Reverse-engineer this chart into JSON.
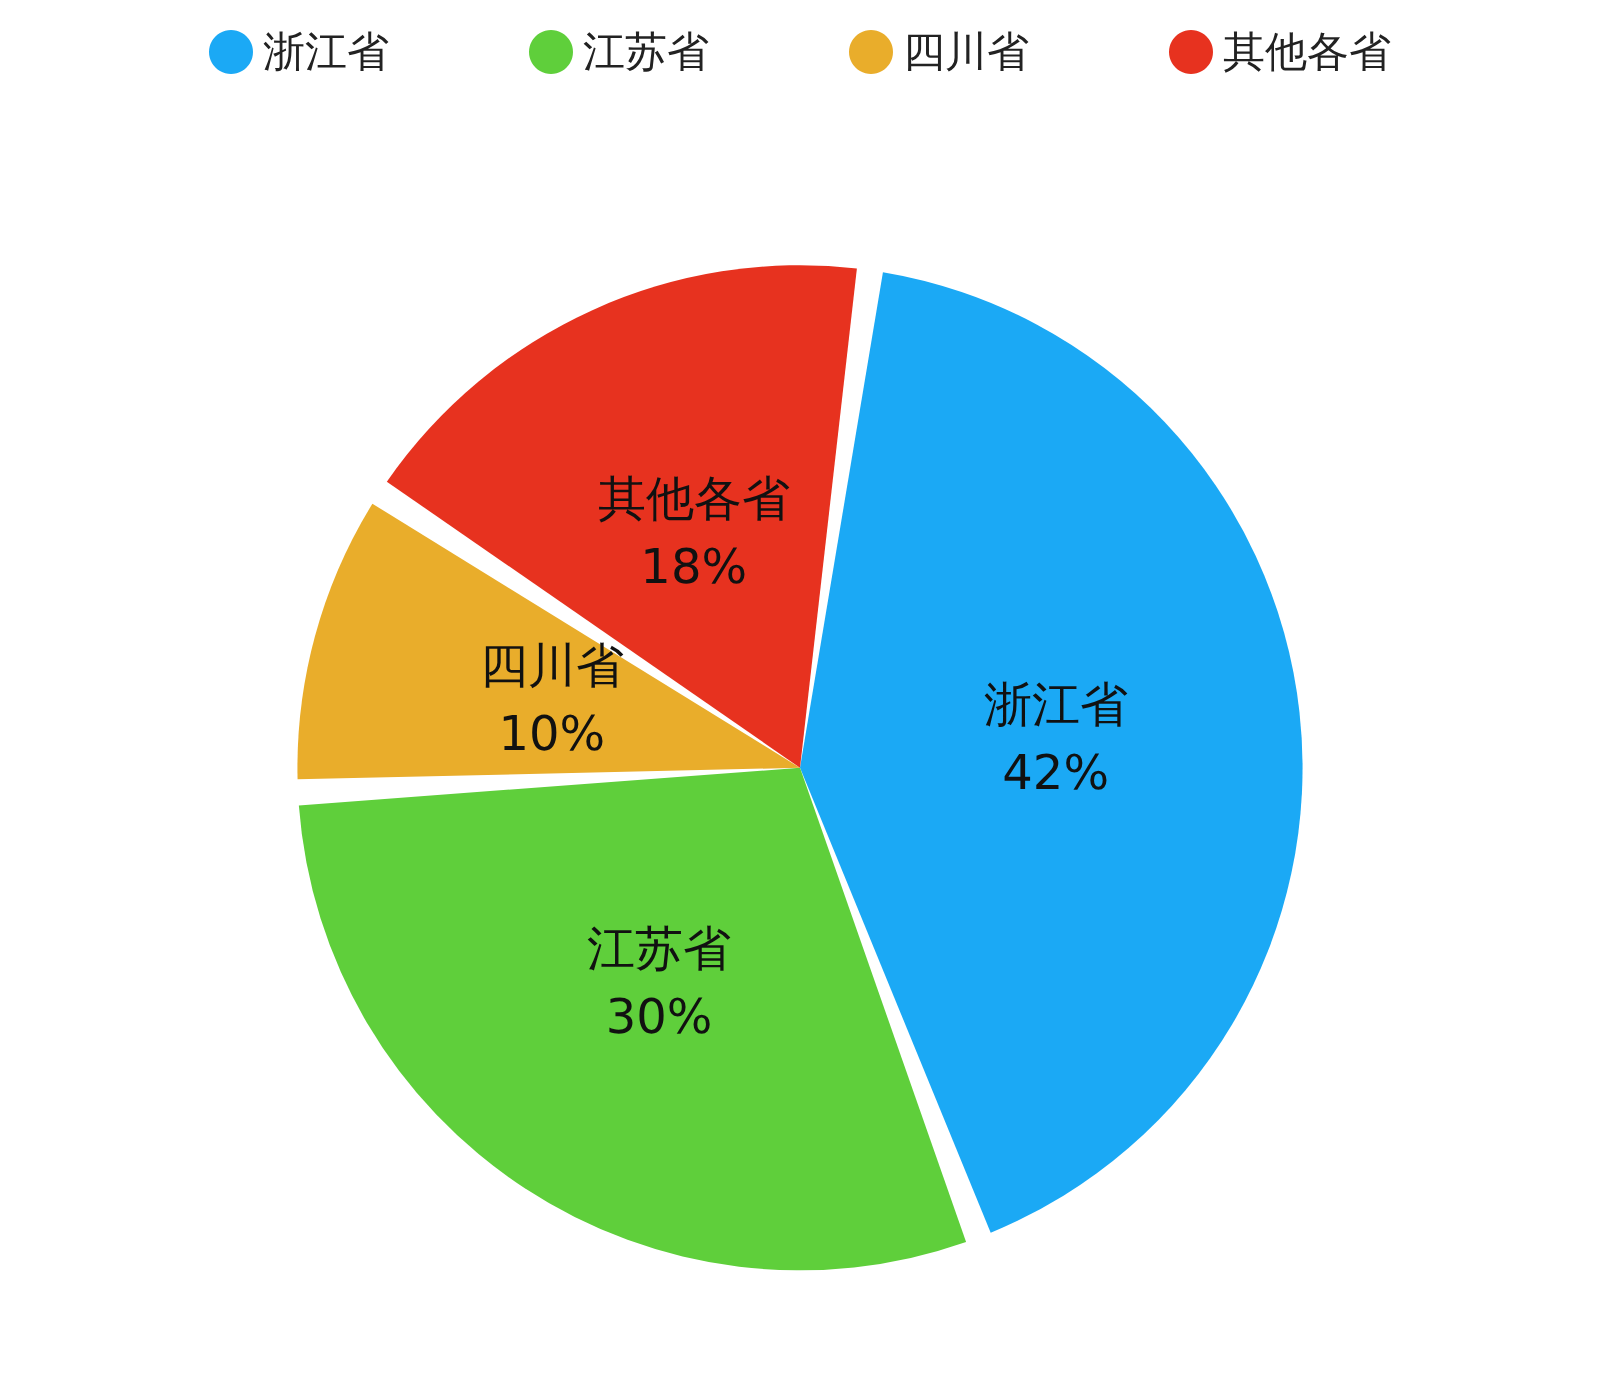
{
  "chart_data": {
    "type": "pie",
    "categories": [
      "浙江省",
      "江苏省",
      "四川省",
      "其他各省"
    ],
    "values": [
      42,
      30,
      10,
      18
    ],
    "colors": [
      "#1ba9f5",
      "#5fcf3b",
      "#e9ad2b",
      "#e7321f"
    ],
    "value_labels": [
      "42%",
      "30%",
      "10%",
      "18%"
    ],
    "legend": "top"
  }
}
